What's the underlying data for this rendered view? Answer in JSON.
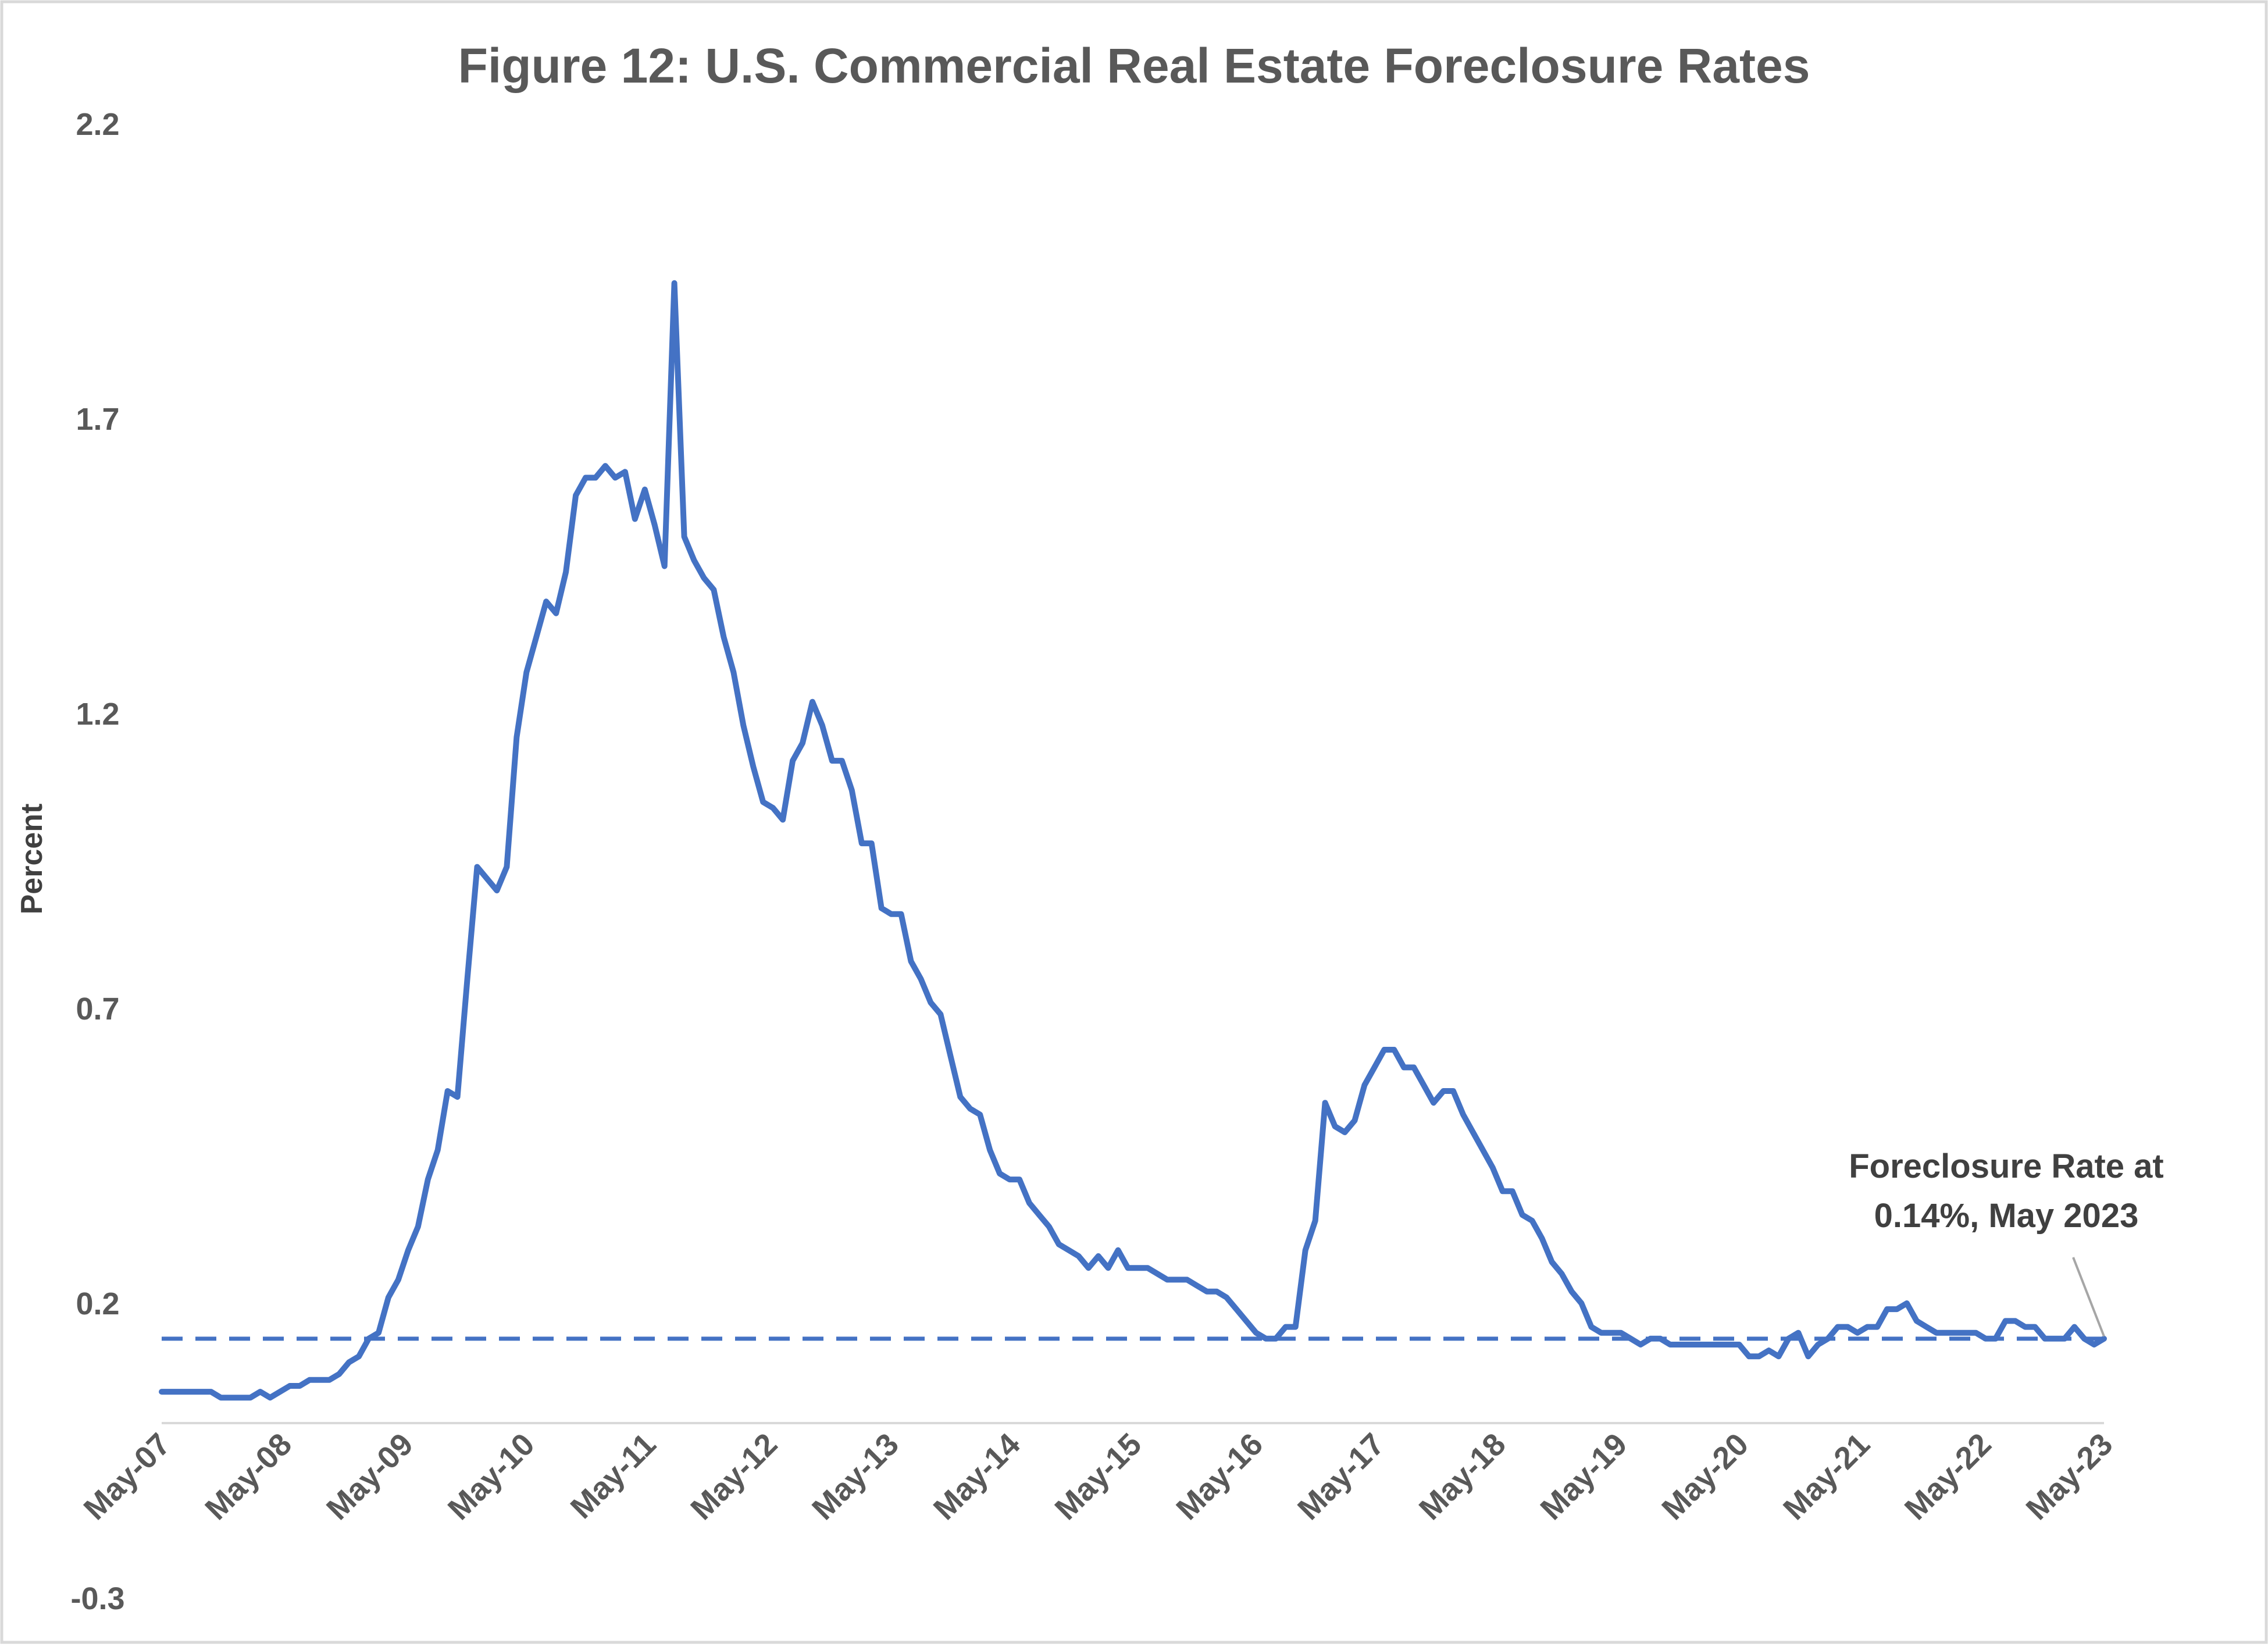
{
  "chart_data": {
    "type": "line",
    "title": "Figure 12:  U.S. Commercial Real Estate Foreclosure Rates",
    "ylabel": "Percent",
    "xlabel": "",
    "ylim": [
      -0.3,
      2.2
    ],
    "yticks": [
      "2.2",
      "1.7",
      "1.2",
      "0.7",
      "0.2",
      "-0.3"
    ],
    "ytick_values": [
      2.2,
      1.7,
      1.2,
      0.7,
      0.2,
      -0.3
    ],
    "x_start": "May-07",
    "x_end": "May-23",
    "xticks": [
      "May-07",
      "May-08",
      "May-09",
      "May-10",
      "May-11",
      "May-12",
      "May-13",
      "May-14",
      "May-15",
      "May-16",
      "May-17",
      "May-18",
      "May-19",
      "May-20",
      "May-21",
      "May-22",
      "May-23"
    ],
    "grid": false,
    "legend": "none",
    "reference_line": {
      "value": 0.14,
      "style": "dashed"
    },
    "annotation": {
      "lines": [
        "Foreclosure Rate at",
        "0.14%, May 2023"
      ]
    },
    "colors": {
      "series": "#4472C4",
      "text": "#595959",
      "callout": "#A6A6A6",
      "frame": "#D9D9D9"
    },
    "series": [
      {
        "values": [
          0.05,
          0.05,
          0.05,
          0.05,
          0.05,
          0.05,
          0.04,
          0.04,
          0.04,
          0.04,
          0.05,
          0.04,
          0.05,
          0.06,
          0.06,
          0.07,
          0.07,
          0.07,
          0.08,
          0.1,
          0.11,
          0.14,
          0.15,
          0.21,
          0.24,
          0.29,
          0.33,
          0.41,
          0.46,
          0.56,
          0.55,
          0.75,
          0.94,
          0.92,
          0.9,
          0.94,
          1.16,
          1.27,
          1.33,
          1.39,
          1.37,
          1.44,
          1.57,
          1.6,
          1.6,
          1.62,
          1.6,
          1.61,
          1.53,
          1.58,
          1.52,
          1.45,
          1.93,
          1.5,
          1.46,
          1.43,
          1.41,
          1.33,
          1.27,
          1.18,
          1.11,
          1.05,
          1.04,
          1.02,
          1.12,
          1.15,
          1.22,
          1.18,
          1.12,
          1.12,
          1.07,
          0.98,
          0.98,
          0.87,
          0.86,
          0.86,
          0.78,
          0.75,
          0.71,
          0.69,
          0.62,
          0.55,
          0.53,
          0.52,
          0.46,
          0.42,
          0.41,
          0.41,
          0.37,
          0.35,
          0.33,
          0.3,
          0.29,
          0.28,
          0.26,
          0.28,
          0.26,
          0.29,
          0.26,
          0.26,
          0.26,
          0.25,
          0.24,
          0.24,
          0.24,
          0.23,
          0.22,
          0.22,
          0.21,
          0.19,
          0.17,
          0.15,
          0.14,
          0.14,
          0.16,
          0.16,
          0.29,
          0.34,
          0.54,
          0.5,
          0.49,
          0.51,
          0.57,
          0.6,
          0.63,
          0.63,
          0.6,
          0.6,
          0.57,
          0.54,
          0.56,
          0.56,
          0.52,
          0.49,
          0.46,
          0.43,
          0.39,
          0.39,
          0.35,
          0.34,
          0.31,
          0.27,
          0.25,
          0.22,
          0.2,
          0.16,
          0.15,
          0.15,
          0.15,
          0.14,
          0.13,
          0.14,
          0.14,
          0.13,
          0.13,
          0.13,
          0.13,
          0.13,
          0.13,
          0.13,
          0.13,
          0.11,
          0.11,
          0.12,
          0.11,
          0.14,
          0.15,
          0.11,
          0.13,
          0.14,
          0.16,
          0.16,
          0.15,
          0.16,
          0.16,
          0.19,
          0.19,
          0.2,
          0.17,
          0.16,
          0.15,
          0.15,
          0.15,
          0.15,
          0.15,
          0.14,
          0.14,
          0.17,
          0.17,
          0.16,
          0.16,
          0.14,
          0.14,
          0.14,
          0.16,
          0.14,
          0.13,
          0.14
        ]
      }
    ]
  }
}
